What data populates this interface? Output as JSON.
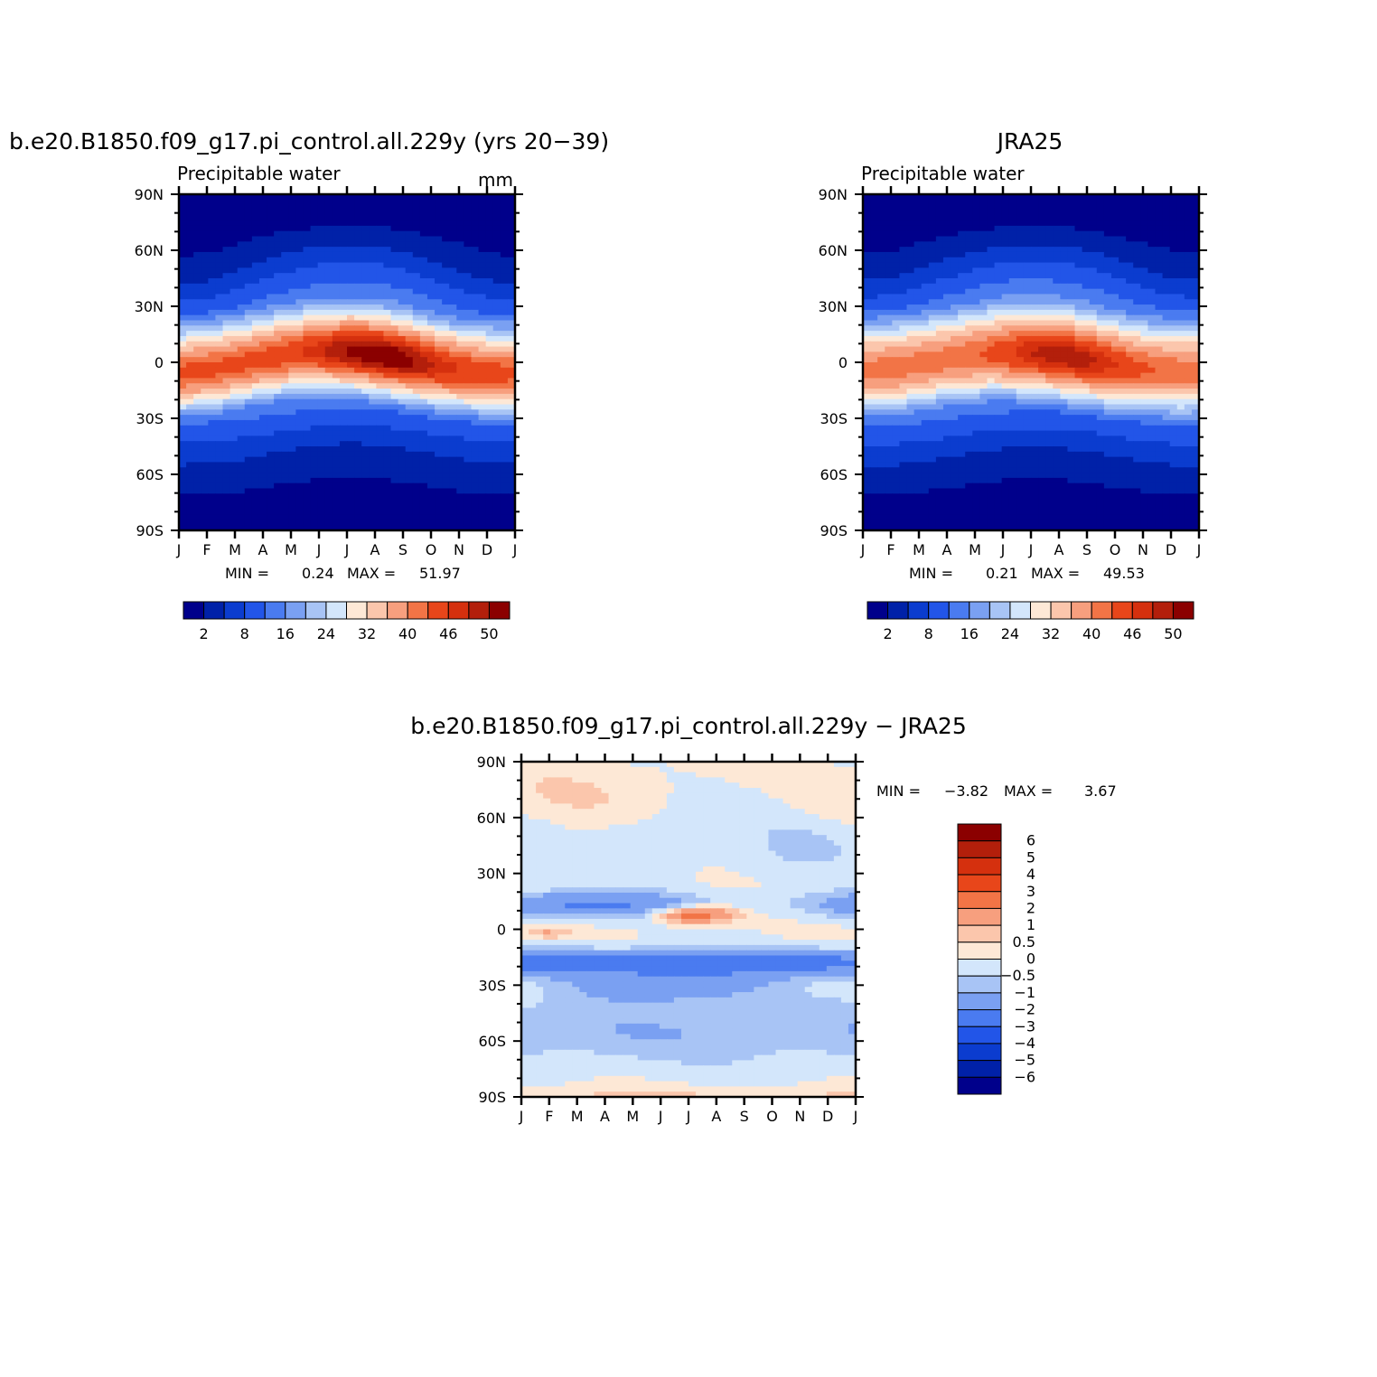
{
  "colors": {
    "seq": [
      "#00008b",
      "#0021a8",
      "#0b3ccf",
      "#2255e8",
      "#4a7bf0",
      "#7aa0f2",
      "#a8c4f5",
      "#d3e6fb",
      "#fde8d6",
      "#fbc6ac",
      "#f79f7e",
      "#f27446",
      "#e8461a",
      "#d5300e",
      "#b31f0b",
      "#8b0000"
    ],
    "diff": [
      "#00008b",
      "#0021a8",
      "#0b3ccf",
      "#2255e8",
      "#4a7bf0",
      "#7aa0f2",
      "#a8c4f5",
      "#d3e6fb",
      "#fde8d6",
      "#fbc6ac",
      "#f79f7e",
      "#f27446",
      "#e8461a",
      "#b31f0b",
      "#8b0000"
    ]
  },
  "chart_data": [
    {
      "id": "panel-model",
      "type": "heatmap",
      "title": "b.e20.B1850.f09_g17.pi_control.all.229y (yrs 20−39)",
      "subtitle": "Precipitable water",
      "units": "mm",
      "xlabel": "",
      "ylabel": "",
      "x_ticks": [
        "J",
        "F",
        "M",
        "A",
        "M",
        "J",
        "J",
        "A",
        "S",
        "O",
        "N",
        "D",
        "J"
      ],
      "y_ticks": [
        "90N",
        "60N",
        "30N",
        "0",
        "30S",
        "60S",
        "90S"
      ],
      "ylim": [
        -90,
        90
      ],
      "min_label": "MIN =",
      "min_value": "0.24",
      "max_label": "MAX =",
      "max_value": "51.97",
      "levels": [
        2,
        5,
        8,
        12,
        16,
        20,
        24,
        28,
        32,
        36,
        40,
        43,
        46,
        48,
        50
      ],
      "colorbar_labels": [
        "2",
        "8",
        "16",
        "24",
        "32",
        "40",
        "46",
        "50"
      ],
      "field": {
        "peak": 51.97,
        "itcz_amp": 6,
        "itcz_phase": -1.3,
        "width_n": 16,
        "width_s": 14,
        "north_max": 16,
        "north_amp": 8,
        "south_max": 11,
        "south_amp": 3,
        "tropic_w": 28
      }
    },
    {
      "id": "panel-obs",
      "type": "heatmap",
      "title": "JRA25",
      "subtitle": "Precipitable water",
      "units": "",
      "xlabel": "",
      "ylabel": "",
      "x_ticks": [
        "J",
        "F",
        "M",
        "A",
        "M",
        "J",
        "J",
        "A",
        "S",
        "O",
        "N",
        "D",
        "J"
      ],
      "y_ticks": [
        "90N",
        "60N",
        "30N",
        "0",
        "30S",
        "60S",
        "90S"
      ],
      "ylim": [
        -90,
        90
      ],
      "min_label": "MIN =",
      "min_value": "0.21",
      "max_label": "MAX =",
      "max_value": "49.53",
      "levels": [
        2,
        5,
        8,
        12,
        16,
        20,
        24,
        28,
        32,
        36,
        40,
        43,
        46,
        48,
        50
      ],
      "colorbar_labels": [
        "2",
        "8",
        "16",
        "24",
        "32",
        "40",
        "46",
        "50"
      ],
      "field": {
        "peak": 49.53,
        "itcz_amp": 5,
        "itcz_phase": -1.3,
        "width_n": 17,
        "width_s": 15,
        "north_max": 16,
        "north_amp": 8,
        "south_max": 11,
        "south_amp": 3,
        "tropic_w": 30
      }
    },
    {
      "id": "panel-diff",
      "type": "heatmap",
      "title": "b.e20.B1850.f09_g17.pi_control.all.229y − JRA25",
      "subtitle": "",
      "units": "",
      "xlabel": "",
      "ylabel": "",
      "x_ticks": [
        "J",
        "F",
        "M",
        "A",
        "M",
        "J",
        "J",
        "A",
        "S",
        "O",
        "N",
        "D",
        "J"
      ],
      "y_ticks": [
        "90N",
        "60N",
        "30N",
        "0",
        "30S",
        "60S",
        "90S"
      ],
      "ylim": [
        -90,
        90
      ],
      "min_label": "MIN =",
      "min_value": "−3.82",
      "max_label": "MAX =",
      "max_value": "3.67",
      "levels": [
        -6,
        -5,
        -4,
        -3,
        -2,
        -1,
        -0.5,
        0,
        0.5,
        1,
        2,
        3,
        4,
        5,
        6
      ],
      "colorbar_labels": [
        "6",
        "5",
        "4",
        "3",
        "2",
        "1",
        "0.5",
        "0",
        "−0.5",
        "−1",
        "−2",
        "−3",
        "−4",
        "−5",
        "−6"
      ]
    }
  ]
}
